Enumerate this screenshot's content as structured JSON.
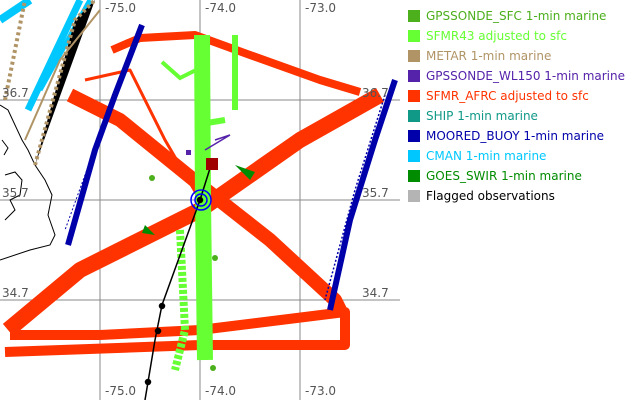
{
  "map": {
    "longitude_labels": [
      "-75.0",
      "-74.0",
      "-73.0"
    ],
    "latitude_labels": [
      "36.7",
      "35.7",
      "34.7"
    ]
  },
  "legend": [
    {
      "label": "GPSSONDE_SFC 1-min marine",
      "color": "#4caf1c"
    },
    {
      "label": "SFMR43 adjusted to sfc",
      "color": "#66ff33"
    },
    {
      "label": "METAR 1-min marine",
      "color": "#b09466"
    },
    {
      "label": "GPSSONDE_WL150 1-min marine",
      "color": "#5522aa"
    },
    {
      "label": "SFMR_AFRC adjusted to sfc",
      "color": "#ff3300"
    },
    {
      "label": "SHIP 1-min marine",
      "color": "#119988"
    },
    {
      "label": "MOORED_BUOY 1-min marine",
      "color": "#0000aa"
    },
    {
      "label": "CMAN 1-min marine",
      "color": "#00c8ff"
    },
    {
      "label": "GOES_SWIR 1-min marine",
      "color": "#008c00"
    },
    {
      "label": "Flagged observations",
      "color": "#b4b4b4"
    }
  ]
}
